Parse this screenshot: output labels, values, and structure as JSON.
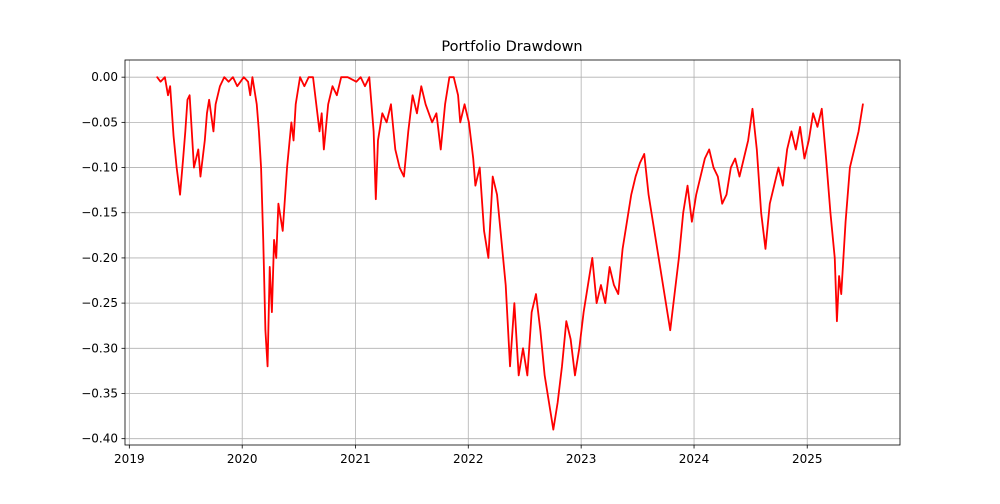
{
  "chart_data": {
    "type": "line",
    "title": "Portfolio Drawdown",
    "xlabel": "",
    "ylabel": "",
    "x_axis": {
      "type": "date",
      "range": [
        "2018-12-18",
        "2025-10-28"
      ],
      "ticks": [
        "2019",
        "2020",
        "2021",
        "2022",
        "2023",
        "2024",
        "2025"
      ],
      "tick_dates": [
        "2019-01-01",
        "2020-01-01",
        "2021-01-01",
        "2022-01-01",
        "2023-01-01",
        "2024-01-01",
        "2025-01-01"
      ]
    },
    "y_axis": {
      "range": [
        -0.407,
        0.019
      ],
      "ticks": [
        0.0,
        -0.05,
        -0.1,
        -0.15,
        -0.2,
        -0.25,
        -0.3,
        -0.35,
        -0.4
      ],
      "tick_labels": [
        "0.00",
        "−0.05",
        "−0.10",
        "−0.15",
        "−0.20",
        "−0.25",
        "−0.30",
        "−0.35",
        "−0.40"
      ]
    },
    "grid": true,
    "legend": "none",
    "colors": {
      "series": "#ff0000",
      "grid": "#b0b0b0",
      "axes": "#000000"
    },
    "series": [
      {
        "color": "#ff0000",
        "points": [
          [
            "2019-04-01",
            0.0
          ],
          [
            "2019-04-12",
            -0.005
          ],
          [
            "2019-04-26",
            0.0
          ],
          [
            "2019-05-06",
            -0.02
          ],
          [
            "2019-05-13",
            -0.01
          ],
          [
            "2019-05-24",
            -0.065
          ],
          [
            "2019-06-03",
            -0.1
          ],
          [
            "2019-06-14",
            -0.13
          ],
          [
            "2019-06-24",
            -0.09
          ],
          [
            "2019-07-01",
            -0.06
          ],
          [
            "2019-07-08",
            -0.025
          ],
          [
            "2019-07-15",
            -0.02
          ],
          [
            "2019-07-22",
            -0.06
          ],
          [
            "2019-07-29",
            -0.1
          ],
          [
            "2019-08-12",
            -0.08
          ],
          [
            "2019-08-19",
            -0.11
          ],
          [
            "2019-09-02",
            -0.07
          ],
          [
            "2019-09-09",
            -0.04
          ],
          [
            "2019-09-16",
            -0.025
          ],
          [
            "2019-09-30",
            -0.06
          ],
          [
            "2019-10-07",
            -0.03
          ],
          [
            "2019-10-21",
            -0.01
          ],
          [
            "2019-11-04",
            0.0
          ],
          [
            "2019-11-18",
            -0.005
          ],
          [
            "2019-12-02",
            0.0
          ],
          [
            "2019-12-16",
            -0.01
          ],
          [
            "2020-01-06",
            0.0
          ],
          [
            "2020-01-20",
            -0.005
          ],
          [
            "2020-01-27",
            -0.02
          ],
          [
            "2020-02-03",
            0.0
          ],
          [
            "2020-02-17",
            -0.03
          ],
          [
            "2020-02-24",
            -0.06
          ],
          [
            "2020-03-02",
            -0.1
          ],
          [
            "2020-03-09",
            -0.18
          ],
          [
            "2020-03-16",
            -0.28
          ],
          [
            "2020-03-23",
            -0.32
          ],
          [
            "2020-03-30",
            -0.21
          ],
          [
            "2020-04-06",
            -0.26
          ],
          [
            "2020-04-13",
            -0.18
          ],
          [
            "2020-04-20",
            -0.2
          ],
          [
            "2020-04-27",
            -0.14
          ],
          [
            "2020-05-11",
            -0.17
          ],
          [
            "2020-05-25",
            -0.1
          ],
          [
            "2020-06-08",
            -0.05
          ],
          [
            "2020-06-15",
            -0.07
          ],
          [
            "2020-06-22",
            -0.03
          ],
          [
            "2020-07-06",
            0.0
          ],
          [
            "2020-07-20",
            -0.01
          ],
          [
            "2020-08-03",
            0.0
          ],
          [
            "2020-08-17",
            0.0
          ],
          [
            "2020-09-07",
            -0.06
          ],
          [
            "2020-09-14",
            -0.04
          ],
          [
            "2020-09-21",
            -0.08
          ],
          [
            "2020-10-05",
            -0.03
          ],
          [
            "2020-10-19",
            -0.01
          ],
          [
            "2020-11-02",
            -0.02
          ],
          [
            "2020-11-16",
            0.0
          ],
          [
            "2020-12-07",
            0.0
          ],
          [
            "2021-01-04",
            -0.005
          ],
          [
            "2021-01-18",
            0.0
          ],
          [
            "2021-02-01",
            -0.01
          ],
          [
            "2021-02-15",
            0.0
          ],
          [
            "2021-03-01",
            -0.06
          ],
          [
            "2021-03-08",
            -0.135
          ],
          [
            "2021-03-15",
            -0.07
          ],
          [
            "2021-03-29",
            -0.04
          ],
          [
            "2021-04-12",
            -0.05
          ],
          [
            "2021-04-26",
            -0.03
          ],
          [
            "2021-05-10",
            -0.08
          ],
          [
            "2021-05-24",
            -0.1
          ],
          [
            "2021-06-07",
            -0.11
          ],
          [
            "2021-06-21",
            -0.06
          ],
          [
            "2021-07-05",
            -0.02
          ],
          [
            "2021-07-19",
            -0.04
          ],
          [
            "2021-08-02",
            -0.01
          ],
          [
            "2021-08-16",
            -0.03
          ],
          [
            "2021-09-06",
            -0.05
          ],
          [
            "2021-09-20",
            -0.04
          ],
          [
            "2021-10-04",
            -0.08
          ],
          [
            "2021-10-18",
            -0.03
          ],
          [
            "2021-11-01",
            0.0
          ],
          [
            "2021-11-15",
            0.0
          ],
          [
            "2021-11-29",
            -0.02
          ],
          [
            "2021-12-06",
            -0.05
          ],
          [
            "2021-12-20",
            -0.03
          ],
          [
            "2022-01-03",
            -0.05
          ],
          [
            "2022-01-17",
            -0.09
          ],
          [
            "2022-01-24",
            -0.12
          ],
          [
            "2022-02-07",
            -0.1
          ],
          [
            "2022-02-21",
            -0.17
          ],
          [
            "2022-03-07",
            -0.2
          ],
          [
            "2022-03-21",
            -0.11
          ],
          [
            "2022-04-04",
            -0.13
          ],
          [
            "2022-04-18",
            -0.18
          ],
          [
            "2022-05-02",
            -0.23
          ],
          [
            "2022-05-16",
            -0.32
          ],
          [
            "2022-05-30",
            -0.25
          ],
          [
            "2022-06-13",
            -0.33
          ],
          [
            "2022-06-27",
            -0.3
          ],
          [
            "2022-07-11",
            -0.33
          ],
          [
            "2022-07-25",
            -0.26
          ],
          [
            "2022-08-08",
            -0.24
          ],
          [
            "2022-08-22",
            -0.28
          ],
          [
            "2022-09-05",
            -0.33
          ],
          [
            "2022-09-19",
            -0.36
          ],
          [
            "2022-10-03",
            -0.39
          ],
          [
            "2022-10-17",
            -0.36
          ],
          [
            "2022-10-31",
            -0.32
          ],
          [
            "2022-11-14",
            -0.27
          ],
          [
            "2022-11-28",
            -0.29
          ],
          [
            "2022-12-12",
            -0.33
          ],
          [
            "2022-12-26",
            -0.3
          ],
          [
            "2023-01-09",
            -0.26
          ],
          [
            "2023-01-23",
            -0.23
          ],
          [
            "2023-02-06",
            -0.2
          ],
          [
            "2023-02-20",
            -0.25
          ],
          [
            "2023-03-06",
            -0.23
          ],
          [
            "2023-03-20",
            -0.25
          ],
          [
            "2023-04-03",
            -0.21
          ],
          [
            "2023-04-17",
            -0.23
          ],
          [
            "2023-05-01",
            -0.24
          ],
          [
            "2023-05-15",
            -0.19
          ],
          [
            "2023-05-29",
            -0.16
          ],
          [
            "2023-06-12",
            -0.13
          ],
          [
            "2023-06-26",
            -0.11
          ],
          [
            "2023-07-10",
            -0.095
          ],
          [
            "2023-07-24",
            -0.085
          ],
          [
            "2023-08-07",
            -0.13
          ],
          [
            "2023-08-21",
            -0.16
          ],
          [
            "2023-09-04",
            -0.19
          ],
          [
            "2023-09-18",
            -0.22
          ],
          [
            "2023-10-02",
            -0.25
          ],
          [
            "2023-10-16",
            -0.28
          ],
          [
            "2023-10-30",
            -0.24
          ],
          [
            "2023-11-13",
            -0.2
          ],
          [
            "2023-11-27",
            -0.15
          ],
          [
            "2023-12-11",
            -0.12
          ],
          [
            "2023-12-25",
            -0.16
          ],
          [
            "2024-01-08",
            -0.13
          ],
          [
            "2024-01-22",
            -0.11
          ],
          [
            "2024-02-05",
            -0.09
          ],
          [
            "2024-02-19",
            -0.08
          ],
          [
            "2024-03-04",
            -0.1
          ],
          [
            "2024-03-18",
            -0.11
          ],
          [
            "2024-04-01",
            -0.14
          ],
          [
            "2024-04-15",
            -0.13
          ],
          [
            "2024-04-29",
            -0.1
          ],
          [
            "2024-05-13",
            -0.09
          ],
          [
            "2024-05-27",
            -0.11
          ],
          [
            "2024-06-10",
            -0.09
          ],
          [
            "2024-06-24",
            -0.07
          ],
          [
            "2024-07-08",
            -0.035
          ],
          [
            "2024-07-22",
            -0.08
          ],
          [
            "2024-08-05",
            -0.15
          ],
          [
            "2024-08-19",
            -0.19
          ],
          [
            "2024-09-02",
            -0.14
          ],
          [
            "2024-09-16",
            -0.12
          ],
          [
            "2024-09-30",
            -0.1
          ],
          [
            "2024-10-14",
            -0.12
          ],
          [
            "2024-10-28",
            -0.08
          ],
          [
            "2024-11-11",
            -0.06
          ],
          [
            "2024-11-25",
            -0.08
          ],
          [
            "2024-12-09",
            -0.055
          ],
          [
            "2024-12-23",
            -0.09
          ],
          [
            "2025-01-06",
            -0.07
          ],
          [
            "2025-01-20",
            -0.04
          ],
          [
            "2025-02-03",
            -0.055
          ],
          [
            "2025-02-17",
            -0.035
          ],
          [
            "2025-03-03",
            -0.09
          ],
          [
            "2025-03-17",
            -0.15
          ],
          [
            "2025-03-31",
            -0.2
          ],
          [
            "2025-04-07",
            -0.27
          ],
          [
            "2025-04-14",
            -0.22
          ],
          [
            "2025-04-21",
            -0.24
          ],
          [
            "2025-05-05",
            -0.16
          ],
          [
            "2025-05-19",
            -0.1
          ],
          [
            "2025-06-02",
            -0.08
          ],
          [
            "2025-06-16",
            -0.06
          ],
          [
            "2025-06-30",
            -0.03
          ]
        ]
      }
    ]
  }
}
